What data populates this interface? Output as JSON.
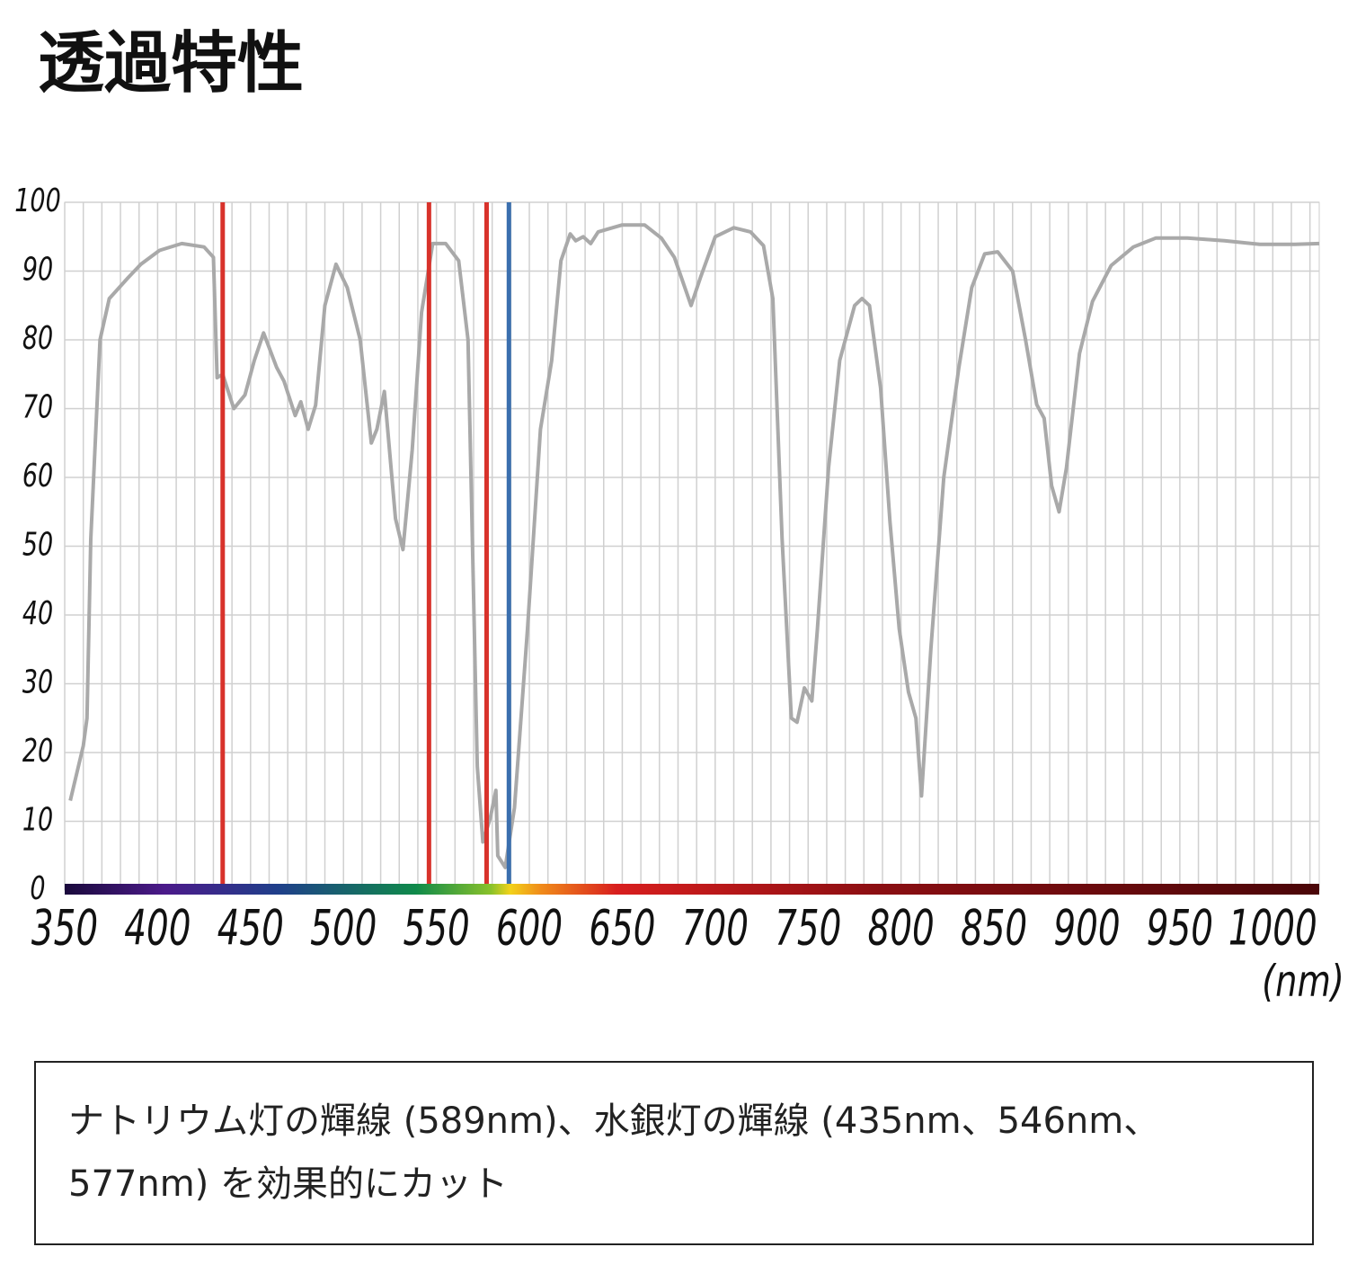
{
  "chart_data": {
    "type": "line",
    "title": "透過特性",
    "x_label": "(nm)",
    "xlim": [
      350,
      1025
    ],
    "ylim": [
      0,
      100
    ],
    "xticks": [
      350,
      400,
      450,
      500,
      550,
      600,
      650,
      700,
      750,
      800,
      850,
      900,
      950,
      1000
    ],
    "yticks": [
      0,
      10,
      20,
      30,
      40,
      50,
      60,
      70,
      80,
      90,
      100
    ],
    "xgrid": [
      360,
      370,
      380,
      390,
      410,
      420,
      430,
      440,
      460,
      470,
      480,
      490,
      510,
      520,
      530,
      540,
      560,
      570,
      580,
      590,
      610,
      620,
      630,
      640,
      660,
      670,
      680,
      690,
      710,
      720,
      730,
      740,
      760,
      770,
      780,
      790,
      810,
      820,
      830,
      840,
      860,
      870,
      880,
      890,
      910,
      920,
      930,
      940,
      960,
      970,
      980,
      990,
      1010,
      1020
    ],
    "grid": true,
    "color": "#a9a9a9",
    "x": [
      353,
      360,
      362,
      364,
      369,
      374,
      384,
      391,
      401,
      413,
      425,
      430,
      432,
      435,
      441,
      447,
      452,
      457,
      464,
      468,
      474,
      477,
      481,
      485,
      490,
      496,
      502,
      509,
      515,
      518,
      522,
      528,
      532,
      537,
      542,
      548,
      555,
      562,
      567,
      572,
      575,
      579,
      582,
      583,
      587,
      592,
      599,
      606,
      612,
      617,
      622,
      625,
      629,
      633,
      637,
      650,
      662,
      671,
      678,
      687,
      692,
      700,
      710,
      719,
      726,
      731,
      736,
      741,
      744,
      748,
      752,
      755,
      761,
      767,
      775,
      779,
      783,
      789,
      794,
      799,
      804,
      808,
      811,
      816,
      823,
      831,
      838,
      845,
      852,
      860,
      867,
      873,
      877,
      881,
      885,
      889,
      896,
      903,
      913,
      925,
      937,
      954,
      974,
      993,
      1012,
      1025
    ],
    "values": [
      13,
      21,
      25,
      51,
      80,
      86,
      89,
      91,
      93,
      94,
      93.5,
      92,
      74.5,
      75,
      70,
      72,
      77,
      81,
      76,
      74,
      69,
      71,
      67,
      70.5,
      85,
      91,
      87.6,
      80,
      65,
      67,
      72.5,
      54,
      49.5,
      64,
      84,
      94,
      94,
      91.5,
      80,
      18,
      7,
      10.5,
      14.5,
      5,
      3.3,
      12,
      38,
      67,
      77,
      91.5,
      95.4,
      94.4,
      95,
      94,
      95.7,
      96.7,
      96.7,
      94.8,
      92,
      85,
      89,
      95,
      96.3,
      95.7,
      93.7,
      86,
      51,
      25,
      24.4,
      29.4,
      27.5,
      38,
      61.4,
      77,
      85,
      86,
      85,
      73,
      53.6,
      38,
      28.8,
      25,
      13.7,
      35,
      60,
      75.8,
      87.6,
      92.5,
      92.8,
      90,
      80,
      70.6,
      68.6,
      58.8,
      55,
      61.4,
      78,
      85.6,
      90.8,
      93.5,
      94.8,
      94.8,
      94.4,
      93.9,
      93.9,
      94
    ],
    "vlines": [
      {
        "value": 435,
        "color": "#d8322b"
      },
      {
        "value": 546,
        "color": "#d8322b"
      },
      {
        "value": 577,
        "color": "#d8322b"
      },
      {
        "value": 589,
        "color": "#3b6fae"
      }
    ],
    "caption": "ナトリウム灯の輝線 (589nm)、水銀灯の輝線 (435nm、546nm、577nm) を効果的にカット"
  }
}
